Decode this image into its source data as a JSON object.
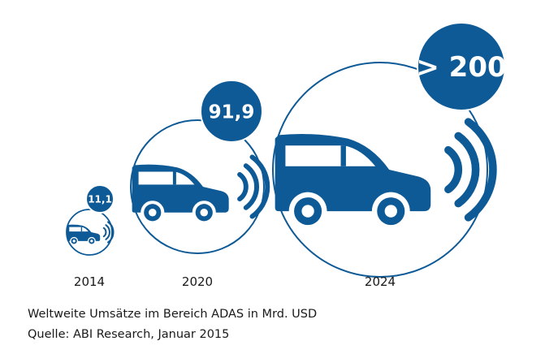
{
  "chart_data": {
    "type": "bubble",
    "categories": [
      "2014",
      "2020",
      "2024"
    ],
    "values": [
      11.1,
      91.9,
      200
    ],
    "value_labels": [
      "11,1",
      "91,9",
      "> 200"
    ],
    "unit": "Mrd. USD",
    "legend": "none"
  },
  "caption": {
    "line1": "Weltweite Umsätze im Bereich ADAS in Mrd. USD",
    "line2": "Quelle: ABI Research, Januar 2015"
  },
  "colors": {
    "accent": "#0e5a96",
    "text": "#1a1a1a",
    "background": "#ffffff"
  },
  "icons": {
    "car": "car-icon",
    "signal": "signal-waves-icon"
  }
}
